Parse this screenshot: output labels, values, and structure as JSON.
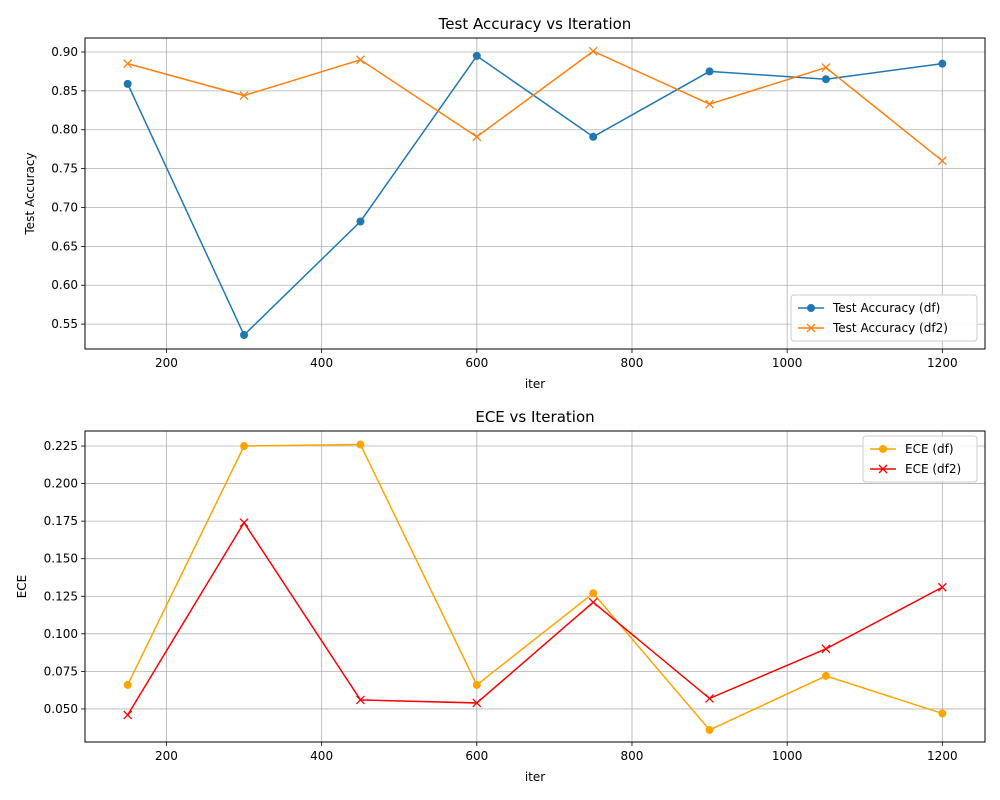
{
  "chart_data": [
    {
      "type": "line",
      "title": "Test Accuracy vs Iteration",
      "xlabel": "iter",
      "ylabel": "Test Accuracy",
      "xlim": [
        95,
        1255
      ],
      "ylim": [
        0.518,
        0.918
      ],
      "xticks": [
        200,
        400,
        600,
        800,
        1000,
        1200
      ],
      "yticks": [
        "0.55",
        "0.60",
        "0.65",
        "0.70",
        "0.75",
        "0.80",
        "0.85",
        "0.90"
      ],
      "grid": true,
      "legend_position": "lower-right",
      "x": [
        150,
        300,
        450,
        600,
        750,
        900,
        1050,
        1200
      ],
      "series": [
        {
          "name": "Test Accuracy (df)",
          "color": "#1f77b4",
          "marker": "circle",
          "values": [
            0.859,
            0.536,
            0.682,
            0.895,
            0.791,
            0.875,
            0.865,
            0.885
          ]
        },
        {
          "name": "Test Accuracy (df2)",
          "color": "#ff7f0e",
          "marker": "x",
          "values": [
            0.885,
            0.844,
            0.89,
            0.791,
            0.901,
            0.833,
            0.88,
            0.76
          ]
        }
      ]
    },
    {
      "type": "line",
      "title": "ECE vs Iteration",
      "xlabel": "iter",
      "ylabel": "ECE",
      "xlim": [
        95,
        1255
      ],
      "ylim": [
        0.028,
        0.235
      ],
      "xticks": [
        200,
        400,
        600,
        800,
        1000,
        1200
      ],
      "yticks": [
        "0.050",
        "0.075",
        "0.100",
        "0.125",
        "0.150",
        "0.175",
        "0.200",
        "0.225"
      ],
      "grid": true,
      "legend_position": "upper-right",
      "x": [
        150,
        300,
        450,
        600,
        750,
        900,
        1050,
        1200
      ],
      "series": [
        {
          "name": "ECE (df)",
          "color": "#ffa500",
          "marker": "circle",
          "values": [
            0.066,
            0.225,
            0.226,
            0.066,
            0.127,
            0.036,
            0.072,
            0.047
          ]
        },
        {
          "name": "ECE (df2)",
          "color": "#ff0000",
          "marker": "x",
          "values": [
            0.046,
            0.174,
            0.056,
            0.054,
            0.121,
            0.057,
            0.09,
            0.131
          ]
        }
      ]
    }
  ]
}
